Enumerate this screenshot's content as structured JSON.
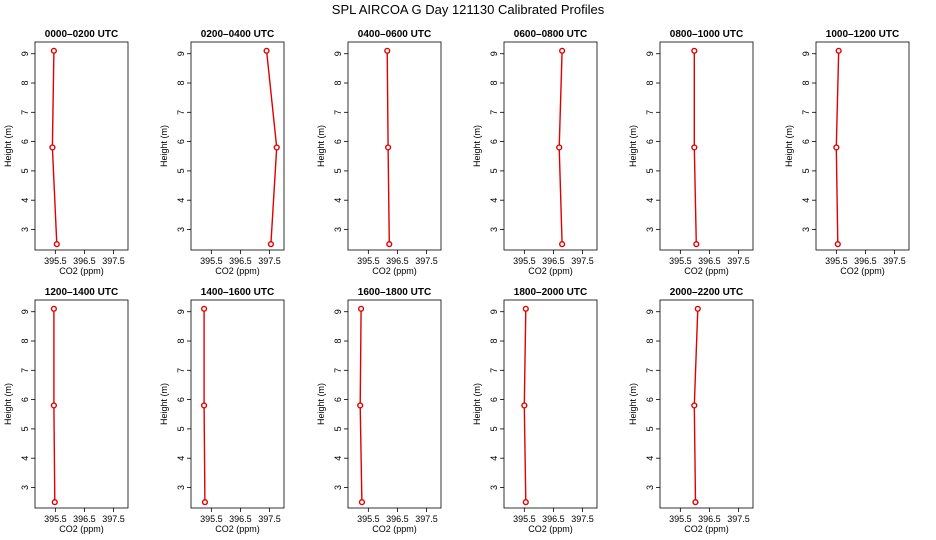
{
  "title": "SPL AIRCOA G  Day 121130  Calibrated Profiles",
  "colors": {
    "series": "#e00000",
    "frame": "#000000"
  },
  "chart_data": {
    "type": "line",
    "layout": "small-multiples",
    "xlabel": "CO2 (ppm)",
    "ylabel": "Height (m)",
    "xlim": [
      394.8,
      398.0
    ],
    "ylim": [
      2.3,
      9.4
    ],
    "xticks": [
      395.5,
      396.5,
      397.5
    ],
    "xtick_labels": [
      "395.5",
      "396.5",
      "397.5"
    ],
    "yticks": [
      3,
      4,
      5,
      6,
      7,
      8,
      9
    ],
    "ytick_labels": [
      "3",
      "4",
      "5",
      "6",
      "7",
      "8",
      "9"
    ],
    "grid": false,
    "panels": [
      {
        "title": "0000–0200 UTC",
        "x": [
          395.45,
          395.4,
          395.55
        ],
        "y": [
          9.1,
          5.8,
          2.5
        ]
      },
      {
        "title": "0200–0400 UTC",
        "x": [
          397.4,
          397.75,
          397.55
        ],
        "y": [
          9.1,
          5.8,
          2.5
        ]
      },
      {
        "title": "0400–0600 UTC",
        "x": [
          396.15,
          396.18,
          396.22
        ],
        "y": [
          9.1,
          5.8,
          2.5
        ]
      },
      {
        "title": "0600–0800 UTC",
        "x": [
          396.8,
          396.7,
          396.8
        ],
        "y": [
          9.1,
          5.8,
          2.5
        ]
      },
      {
        "title": "0800–1000 UTC",
        "x": [
          395.98,
          395.98,
          396.05
        ],
        "y": [
          9.1,
          5.8,
          2.5
        ]
      },
      {
        "title": "1000–1200 UTC",
        "x": [
          395.58,
          395.5,
          395.55
        ],
        "y": [
          9.1,
          5.8,
          2.5
        ]
      },
      {
        "title": "1200–1400 UTC",
        "x": [
          395.45,
          395.45,
          395.48
        ],
        "y": [
          9.1,
          5.8,
          2.5
        ]
      },
      {
        "title": "1400–1600 UTC",
        "x": [
          395.25,
          395.25,
          395.28
        ],
        "y": [
          9.1,
          5.8,
          2.5
        ]
      },
      {
        "title": "1600–1800 UTC",
        "x": [
          395.25,
          395.22,
          395.28
        ],
        "y": [
          9.1,
          5.8,
          2.5
        ]
      },
      {
        "title": "1800–2000 UTC",
        "x": [
          395.55,
          395.5,
          395.55
        ],
        "y": [
          9.1,
          5.8,
          2.5
        ]
      },
      {
        "title": "2000–2200 UTC",
        "x": [
          396.1,
          395.98,
          396.02
        ],
        "y": [
          9.1,
          5.8,
          2.5
        ]
      }
    ]
  }
}
